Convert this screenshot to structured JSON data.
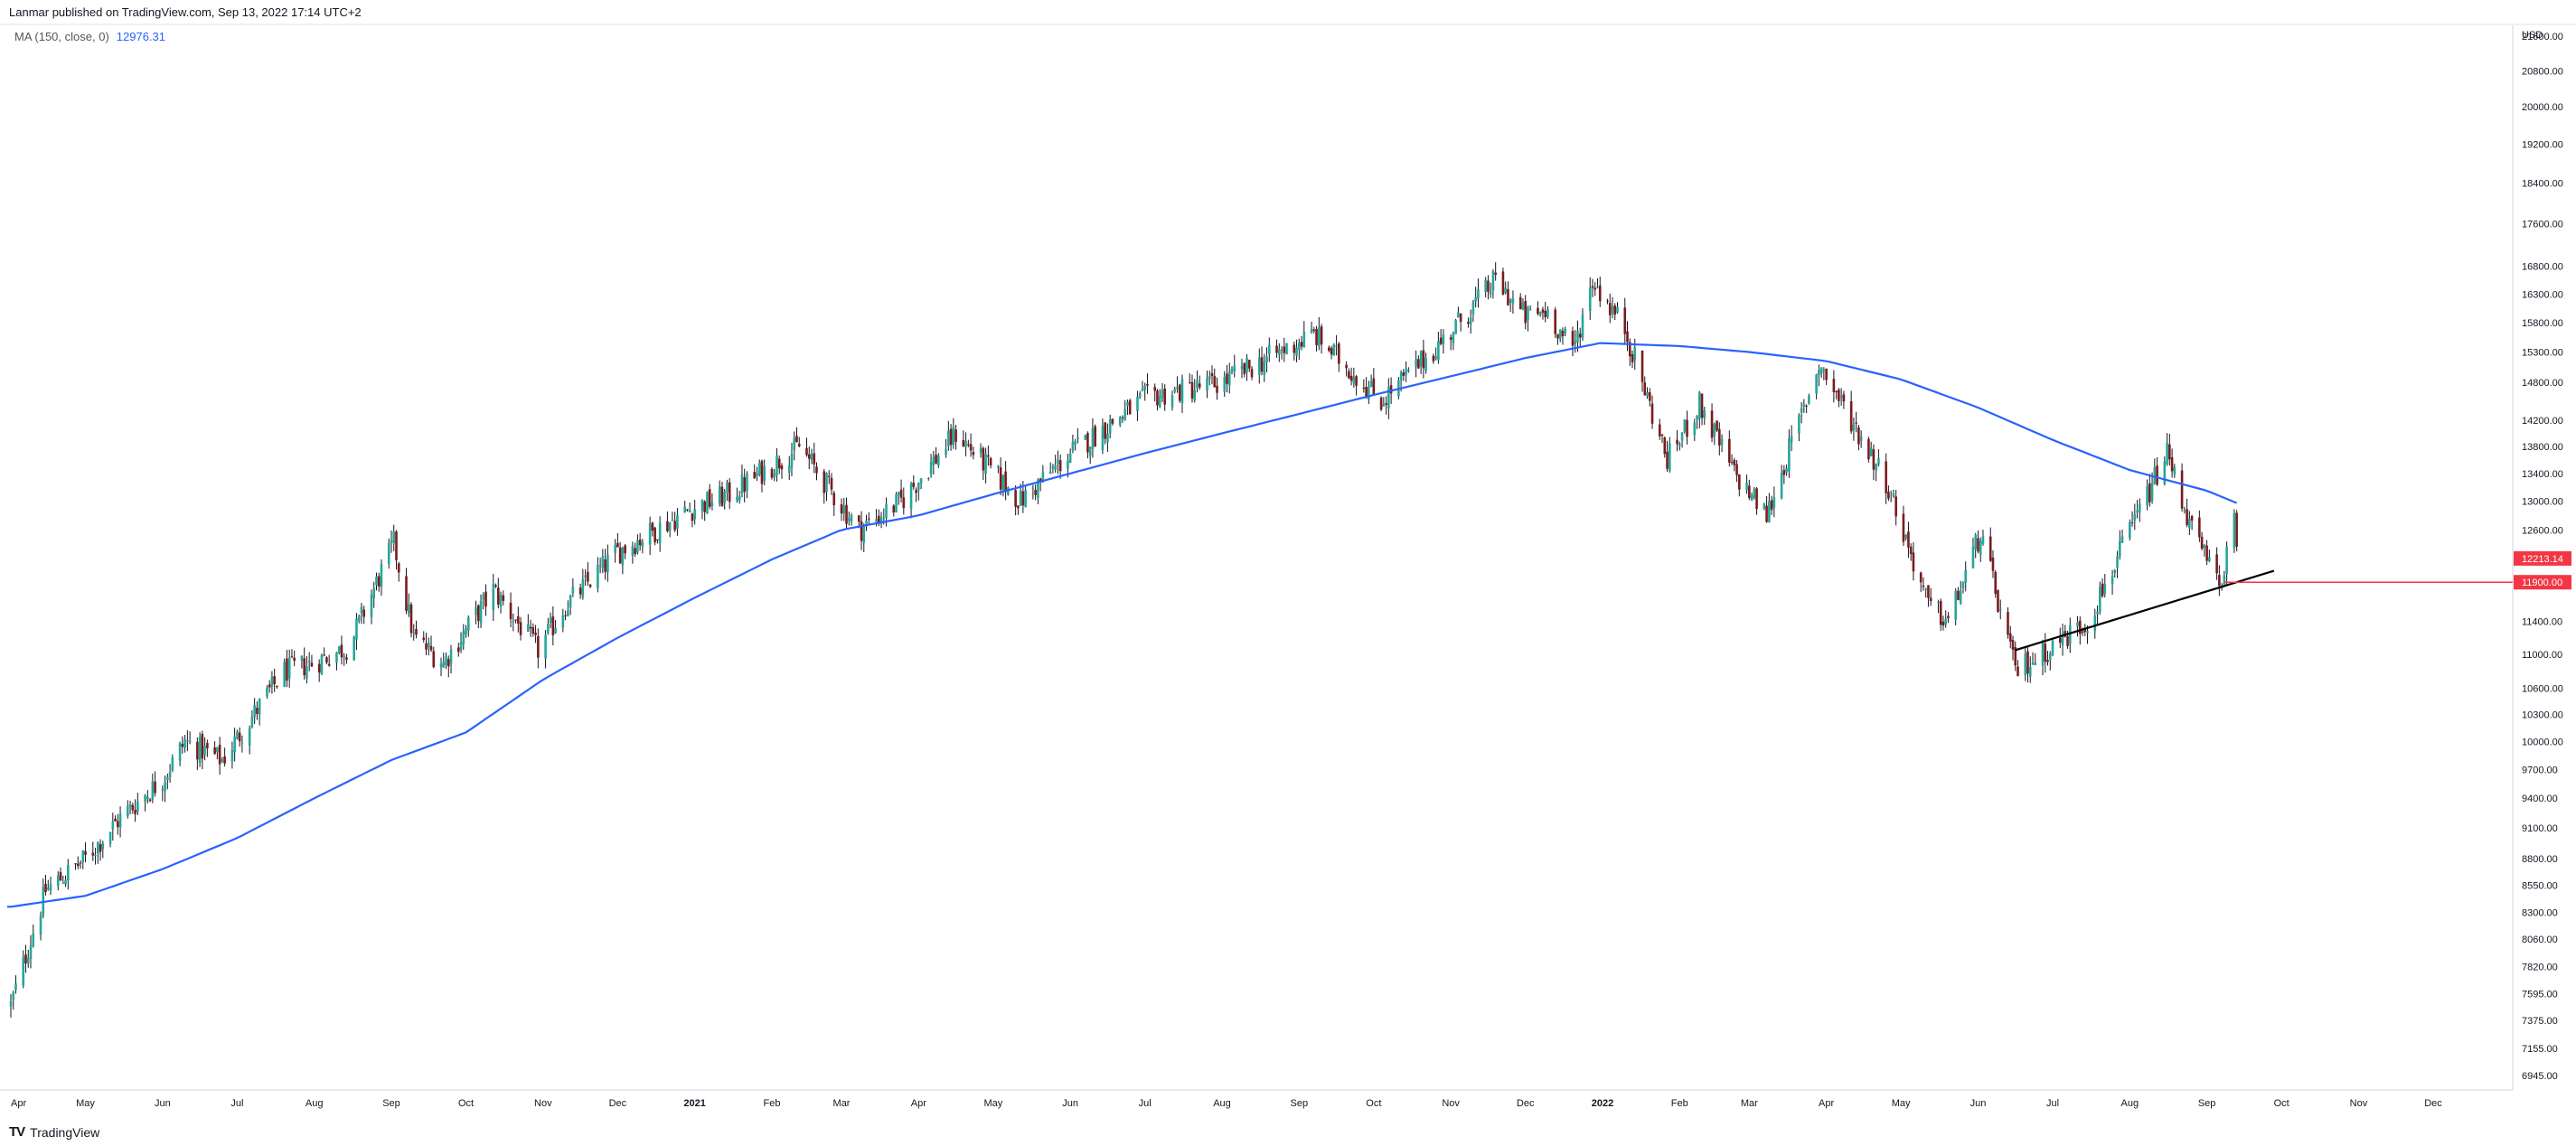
{
  "header": {
    "text": "Lanmar published on TradingView.com, Sep 13, 2022 17:14 UTC+2"
  },
  "legend": {
    "label": "MA (150, close, 0)",
    "value": "12976.31"
  },
  "footer": {
    "brand": "TradingView"
  },
  "colors": {
    "up": "#26a69a",
    "down": "#7a1c1c",
    "wick": "#131722",
    "ma": "#2962ff",
    "trendline": "#000000",
    "hline": "#f23645",
    "badge_red": "#f23645"
  },
  "chart_data": {
    "type": "candlestick",
    "currency": "USD",
    "ylim": [
      6945,
      21600
    ],
    "y_scale": "log",
    "y_ticks": [
      "21600.00",
      "20800.00",
      "20000.00",
      "19200.00",
      "18400.00",
      "17600.00",
      "16800.00",
      "16300.00",
      "15800.00",
      "15300.00",
      "14800.00",
      "14200.00",
      "13800.00",
      "13400.00",
      "13000.00",
      "12600.00",
      "11400.00",
      "11000.00",
      "10600.00",
      "10300.00",
      "10000.00",
      "9700.00",
      "9400.00",
      "9100.00",
      "8800.00",
      "8550.00",
      "8300.00",
      "8060.00",
      "7820.00",
      "7595.00",
      "7375.00",
      "7155.00",
      "6945.00"
    ],
    "x_ticks": [
      "Apr",
      "May",
      "Jun",
      "Jul",
      "Aug",
      "Sep",
      "Oct",
      "Nov",
      "Dec",
      "2021",
      "Feb",
      "Mar",
      "Apr",
      "May",
      "Jun",
      "Jul",
      "Aug",
      "Sep",
      "Oct",
      "Nov",
      "Dec",
      "2022",
      "Feb",
      "Mar",
      "Apr",
      "May",
      "Jun",
      "Jul",
      "Aug",
      "Sep",
      "Oct",
      "Nov",
      "Dec"
    ],
    "last_price": "12213.14",
    "level_price": "11900.00",
    "price_path": [
      [
        "2020-04-01",
        7500
      ],
      [
        "2020-04-15",
        8500
      ],
      [
        "2020-05-01",
        8800
      ],
      [
        "2020-05-15",
        9200
      ],
      [
        "2020-06-01",
        9600
      ],
      [
        "2020-06-10",
        10000
      ],
      [
        "2020-06-25",
        9800
      ],
      [
        "2020-07-10",
        10400
      ],
      [
        "2020-07-20",
        10800
      ],
      [
        "2020-08-01",
        10900
      ],
      [
        "2020-08-15",
        11100
      ],
      [
        "2020-09-02",
        12420
      ],
      [
        "2020-09-10",
        11200
      ],
      [
        "2020-09-22",
        10900
      ],
      [
        "2020-10-12",
        11800
      ],
      [
        "2020-10-30",
        11050
      ],
      [
        "2020-11-10",
        11600
      ],
      [
        "2020-12-01",
        12300
      ],
      [
        "2020-12-31",
        12900
      ],
      [
        "2021-01-15",
        13100
      ],
      [
        "2021-02-12",
        13800
      ],
      [
        "2021-03-08",
        12600
      ],
      [
        "2021-03-25",
        13000
      ],
      [
        "2021-04-16",
        14000
      ],
      [
        "2021-05-12",
        13000
      ],
      [
        "2021-06-01",
        13700
      ],
      [
        "2021-07-01",
        14550
      ],
      [
        "2021-08-01",
        14800
      ],
      [
        "2021-09-07",
        15600
      ],
      [
        "2021-10-04",
        14500
      ],
      [
        "2021-10-29",
        15500
      ],
      [
        "2021-11-19",
        16550
      ],
      [
        "2021-12-01",
        15900
      ],
      [
        "2021-12-10",
        16000
      ],
      [
        "2021-12-20",
        15300
      ],
      [
        "2021-12-28",
        16550
      ],
      [
        "2022-01-10",
        15700
      ],
      [
        "2022-01-27",
        13600
      ],
      [
        "2022-02-09",
        14450
      ],
      [
        "2022-02-23",
        13400
      ],
      [
        "2022-03-08",
        12800
      ],
      [
        "2022-03-29",
        15100
      ],
      [
        "2022-04-25",
        13300
      ],
      [
        "2022-05-12",
        11600
      ],
      [
        "2022-05-20",
        11400
      ],
      [
        "2022-06-02",
        12550
      ],
      [
        "2022-06-16",
        10800
      ],
      [
        "2022-07-01",
        11100
      ],
      [
        "2022-07-15",
        11400
      ],
      [
        "2022-08-16",
        13700
      ],
      [
        "2022-08-26",
        12600
      ],
      [
        "2022-09-06",
        11850
      ],
      [
        "2022-09-12",
        12700
      ],
      [
        "2022-09-13",
        12213
      ]
    ],
    "ma_path": [
      [
        "2020-04-01",
        8350
      ],
      [
        "2020-05-01",
        8450
      ],
      [
        "2020-06-01",
        8700
      ],
      [
        "2020-07-01",
        9000
      ],
      [
        "2020-08-01",
        9400
      ],
      [
        "2020-09-01",
        9800
      ],
      [
        "2020-10-01",
        10100
      ],
      [
        "2020-11-01",
        10700
      ],
      [
        "2020-12-01",
        11200
      ],
      [
        "2021-01-01",
        11700
      ],
      [
        "2021-02-01",
        12200
      ],
      [
        "2021-03-01",
        12600
      ],
      [
        "2021-04-01",
        12800
      ],
      [
        "2021-05-01",
        13100
      ],
      [
        "2021-06-01",
        13400
      ],
      [
        "2021-07-01",
        13700
      ],
      [
        "2021-08-01",
        14000
      ],
      [
        "2021-09-01",
        14300
      ],
      [
        "2021-10-01",
        14600
      ],
      [
        "2021-11-01",
        14900
      ],
      [
        "2021-12-01",
        15200
      ],
      [
        "2021-12-31",
        15450
      ],
      [
        "2022-02-01",
        15400
      ],
      [
        "2022-03-01",
        15300
      ],
      [
        "2022-04-01",
        15150
      ],
      [
        "2022-05-01",
        14850
      ],
      [
        "2022-06-01",
        14400
      ],
      [
        "2022-07-01",
        13900
      ],
      [
        "2022-08-01",
        13450
      ],
      [
        "2022-09-01",
        13150
      ],
      [
        "2022-09-13",
        12976
      ]
    ],
    "trendline": [
      [
        "2022-06-16",
        11050
      ],
      [
        "2022-09-28",
        12050
      ]
    ],
    "horizontal_level": {
      "price": 11900,
      "from": "2022-09-08"
    }
  }
}
